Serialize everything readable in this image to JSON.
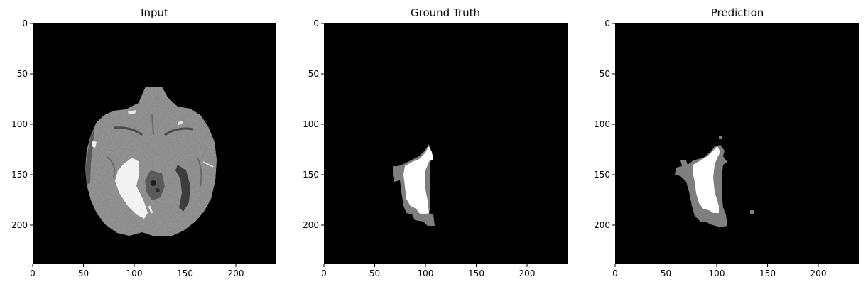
{
  "panels": [
    {
      "title": "Input",
      "kind": "mri-axial-slice",
      "xticks": [
        "0",
        "50",
        "100",
        "150",
        "200"
      ],
      "yticks": [
        "0",
        "50",
        "100",
        "150",
        "200"
      ]
    },
    {
      "title": "Ground Truth",
      "kind": "segmentation-mask",
      "xticks": [
        "0",
        "50",
        "100",
        "150",
        "200"
      ],
      "yticks": [
        "0",
        "50",
        "100",
        "150",
        "200"
      ]
    },
    {
      "title": "Prediction",
      "kind": "segmentation-mask",
      "xticks": [
        "0",
        "50",
        "100",
        "150",
        "200"
      ],
      "yticks": [
        "0",
        "50",
        "100",
        "150",
        "200"
      ]
    }
  ],
  "tick_values": [
    0,
    50,
    100,
    150,
    200
  ],
  "image_size": 240,
  "colors": {
    "background": "#000000",
    "brain_tissue": "#9a9a9a",
    "lesion_core": "#ffffff",
    "lesion_edge": "#808080"
  }
}
